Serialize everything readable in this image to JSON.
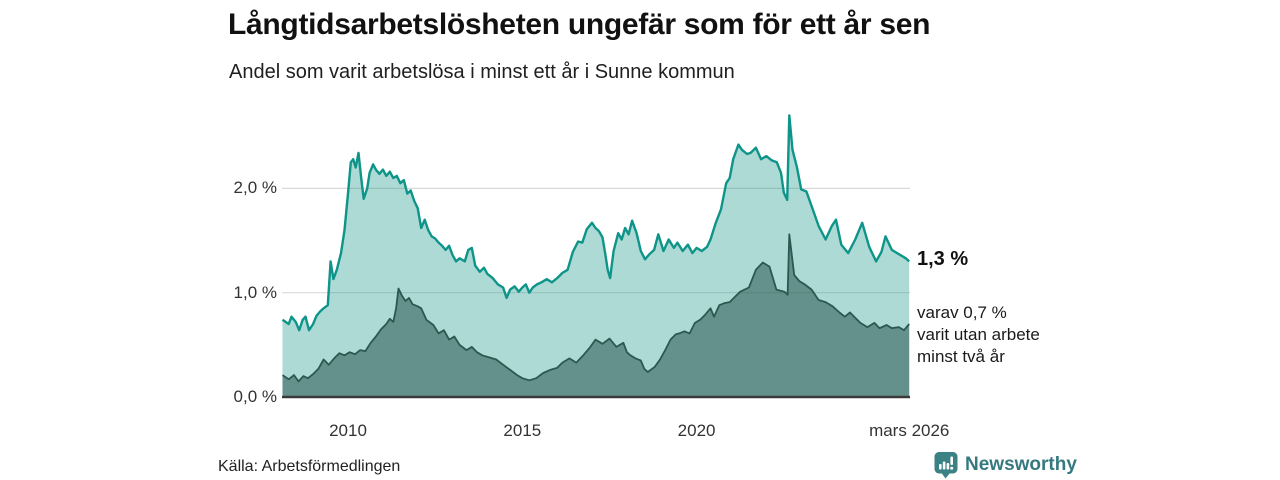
{
  "header": {
    "title": "Långtidsarbetslösheten ungefär som för ett år sen",
    "subtitle": "Andel som varit arbetslösa i minst ett år i Sunne kommun"
  },
  "annotations": {
    "latest_value": "1,3 %",
    "sub_line1": "varav 0,7 %",
    "sub_line2": "varit utan arbete",
    "sub_line3": "minst två år"
  },
  "footer": {
    "source": "Källa: Arbetsförmedlingen",
    "logo_text": "Newsworthy"
  },
  "colors": {
    "accent_teal_line": "#0e9488",
    "light_area_fill": "#a9d6cf",
    "dark_series_line": "#2b5851",
    "dark_area_fill": "#6fa098",
    "grid_line": "#d9d9d9",
    "axis_line": "#3a3a3a",
    "logo_teal": "#3b8285"
  },
  "chart_data": {
    "type": "area",
    "title": "Andel som varit arbetslösa i minst ett år i Sunne kommun",
    "xlabel": "",
    "ylabel": "",
    "grid": "horizontal",
    "xlim": [
      2008.12,
      2026.1
    ],
    "ylim": [
      0,
      2.75
    ],
    "x_ticks": [
      {
        "label": "2010",
        "year": 2010
      },
      {
        "label": "2015",
        "year": 2015
      },
      {
        "label": "2020",
        "year": 2020
      },
      {
        "label": "mars 2026",
        "year": 2026.1
      }
    ],
    "y_ticks": [
      {
        "label": "0,0 %",
        "value": 0
      },
      {
        "label": "1,0 %",
        "value": 1
      },
      {
        "label": "2,0 %",
        "value": 2
      }
    ],
    "series": [
      {
        "name": "Andel arbetslösa minst ett år",
        "latest_label": "1,3 %",
        "line_color": "#0e9488",
        "fill_color": "rgba(20,148,136,0.35)",
        "points": [
          [
            2008.12,
            0.74
          ],
          [
            2008.3,
            0.7
          ],
          [
            2008.38,
            0.77
          ],
          [
            2008.5,
            0.72
          ],
          [
            2008.6,
            0.64
          ],
          [
            2008.7,
            0.74
          ],
          [
            2008.78,
            0.77
          ],
          [
            2008.88,
            0.64
          ],
          [
            2009.0,
            0.7
          ],
          [
            2009.1,
            0.78
          ],
          [
            2009.2,
            0.82
          ],
          [
            2009.3,
            0.85
          ],
          [
            2009.42,
            0.88
          ],
          [
            2009.5,
            1.3
          ],
          [
            2009.58,
            1.13
          ],
          [
            2009.68,
            1.22
          ],
          [
            2009.8,
            1.38
          ],
          [
            2009.9,
            1.6
          ],
          [
            2010.0,
            1.95
          ],
          [
            2010.08,
            2.25
          ],
          [
            2010.15,
            2.28
          ],
          [
            2010.22,
            2.2
          ],
          [
            2010.3,
            2.34
          ],
          [
            2010.38,
            2.1
          ],
          [
            2010.45,
            1.9
          ],
          [
            2010.55,
            2.0
          ],
          [
            2010.62,
            2.15
          ],
          [
            2010.72,
            2.23
          ],
          [
            2010.8,
            2.18
          ],
          [
            2010.9,
            2.14
          ],
          [
            2011.0,
            2.18
          ],
          [
            2011.1,
            2.12
          ],
          [
            2011.2,
            2.16
          ],
          [
            2011.3,
            2.1
          ],
          [
            2011.4,
            2.12
          ],
          [
            2011.5,
            2.05
          ],
          [
            2011.6,
            2.08
          ],
          [
            2011.7,
            1.95
          ],
          [
            2011.8,
            1.98
          ],
          [
            2011.9,
            1.88
          ],
          [
            2012.0,
            1.81
          ],
          [
            2012.1,
            1.62
          ],
          [
            2012.2,
            1.7
          ],
          [
            2012.3,
            1.6
          ],
          [
            2012.4,
            1.54
          ],
          [
            2012.5,
            1.52
          ],
          [
            2012.6,
            1.48
          ],
          [
            2012.7,
            1.45
          ],
          [
            2012.8,
            1.41
          ],
          [
            2012.9,
            1.45
          ],
          [
            2013.0,
            1.36
          ],
          [
            2013.1,
            1.3
          ],
          [
            2013.2,
            1.33
          ],
          [
            2013.35,
            1.3
          ],
          [
            2013.45,
            1.41
          ],
          [
            2013.55,
            1.43
          ],
          [
            2013.65,
            1.26
          ],
          [
            2013.78,
            1.2
          ],
          [
            2013.9,
            1.24
          ],
          [
            2014.0,
            1.18
          ],
          [
            2014.15,
            1.14
          ],
          [
            2014.3,
            1.08
          ],
          [
            2014.45,
            1.05
          ],
          [
            2014.55,
            0.95
          ],
          [
            2014.65,
            1.03
          ],
          [
            2014.78,
            1.06
          ],
          [
            2014.9,
            1.01
          ],
          [
            2015.0,
            1.05
          ],
          [
            2015.1,
            1.08
          ],
          [
            2015.2,
            1.0
          ],
          [
            2015.3,
            1.05
          ],
          [
            2015.42,
            1.08
          ],
          [
            2015.55,
            1.1
          ],
          [
            2015.7,
            1.13
          ],
          [
            2015.85,
            1.1
          ],
          [
            2016.0,
            1.14
          ],
          [
            2016.15,
            1.19
          ],
          [
            2016.3,
            1.22
          ],
          [
            2016.45,
            1.39
          ],
          [
            2016.6,
            1.49
          ],
          [
            2016.72,
            1.48
          ],
          [
            2016.85,
            1.61
          ],
          [
            2017.0,
            1.67
          ],
          [
            2017.1,
            1.62
          ],
          [
            2017.2,
            1.59
          ],
          [
            2017.3,
            1.53
          ],
          [
            2017.38,
            1.37
          ],
          [
            2017.45,
            1.22
          ],
          [
            2017.52,
            1.14
          ],
          [
            2017.62,
            1.4
          ],
          [
            2017.75,
            1.57
          ],
          [
            2017.85,
            1.51
          ],
          [
            2017.95,
            1.62
          ],
          [
            2018.05,
            1.56
          ],
          [
            2018.15,
            1.69
          ],
          [
            2018.28,
            1.57
          ],
          [
            2018.4,
            1.4
          ],
          [
            2018.52,
            1.32
          ],
          [
            2018.65,
            1.37
          ],
          [
            2018.78,
            1.41
          ],
          [
            2018.9,
            1.56
          ],
          [
            2019.05,
            1.4
          ],
          [
            2019.2,
            1.51
          ],
          [
            2019.35,
            1.43
          ],
          [
            2019.45,
            1.48
          ],
          [
            2019.6,
            1.4
          ],
          [
            2019.75,
            1.46
          ],
          [
            2019.88,
            1.38
          ],
          [
            2020.0,
            1.43
          ],
          [
            2020.15,
            1.4
          ],
          [
            2020.3,
            1.44
          ],
          [
            2020.4,
            1.51
          ],
          [
            2020.55,
            1.67
          ],
          [
            2020.7,
            1.8
          ],
          [
            2020.85,
            2.05
          ],
          [
            2020.95,
            2.1
          ],
          [
            2021.05,
            2.28
          ],
          [
            2021.2,
            2.42
          ],
          [
            2021.3,
            2.37
          ],
          [
            2021.45,
            2.33
          ],
          [
            2021.55,
            2.34
          ],
          [
            2021.7,
            2.39
          ],
          [
            2021.85,
            2.28
          ],
          [
            2022.0,
            2.31
          ],
          [
            2022.15,
            2.27
          ],
          [
            2022.3,
            2.25
          ],
          [
            2022.42,
            2.15
          ],
          [
            2022.5,
            1.96
          ],
          [
            2022.6,
            1.89
          ],
          [
            2022.66,
            2.7
          ],
          [
            2022.75,
            2.37
          ],
          [
            2022.88,
            2.2
          ],
          [
            2023.0,
            1.99
          ],
          [
            2023.15,
            1.97
          ],
          [
            2023.3,
            1.83
          ],
          [
            2023.5,
            1.64
          ],
          [
            2023.7,
            1.51
          ],
          [
            2023.88,
            1.64
          ],
          [
            2024.0,
            1.7
          ],
          [
            2024.15,
            1.46
          ],
          [
            2024.35,
            1.38
          ],
          [
            2024.55,
            1.51
          ],
          [
            2024.75,
            1.67
          ],
          [
            2024.95,
            1.44
          ],
          [
            2025.15,
            1.3
          ],
          [
            2025.3,
            1.39
          ],
          [
            2025.42,
            1.54
          ],
          [
            2025.6,
            1.41
          ],
          [
            2025.8,
            1.37
          ],
          [
            2026.0,
            1.33
          ],
          [
            2026.1,
            1.3
          ]
        ]
      },
      {
        "name": "Andel arbetslösa minst två år",
        "latest_label": "0,7 %",
        "line_color": "#2b5851",
        "fill_color": "rgba(40,85,79,0.55)",
        "points": [
          [
            2008.12,
            0.21
          ],
          [
            2008.3,
            0.17
          ],
          [
            2008.45,
            0.21
          ],
          [
            2008.58,
            0.15
          ],
          [
            2008.72,
            0.2
          ],
          [
            2008.85,
            0.18
          ],
          [
            2009.0,
            0.22
          ],
          [
            2009.15,
            0.27
          ],
          [
            2009.3,
            0.36
          ],
          [
            2009.45,
            0.31
          ],
          [
            2009.6,
            0.37
          ],
          [
            2009.75,
            0.42
          ],
          [
            2009.9,
            0.4
          ],
          [
            2010.05,
            0.43
          ],
          [
            2010.2,
            0.41
          ],
          [
            2010.35,
            0.45
          ],
          [
            2010.5,
            0.44
          ],
          [
            2010.65,
            0.52
          ],
          [
            2010.8,
            0.58
          ],
          [
            2010.95,
            0.65
          ],
          [
            2011.1,
            0.7
          ],
          [
            2011.2,
            0.75
          ],
          [
            2011.3,
            0.72
          ],
          [
            2011.38,
            0.85
          ],
          [
            2011.45,
            1.04
          ],
          [
            2011.55,
            0.97
          ],
          [
            2011.65,
            0.92
          ],
          [
            2011.75,
            0.95
          ],
          [
            2011.85,
            0.89
          ],
          [
            2012.0,
            0.87
          ],
          [
            2012.1,
            0.85
          ],
          [
            2012.25,
            0.74
          ],
          [
            2012.45,
            0.69
          ],
          [
            2012.6,
            0.61
          ],
          [
            2012.75,
            0.64
          ],
          [
            2012.9,
            0.55
          ],
          [
            2013.05,
            0.58
          ],
          [
            2013.2,
            0.5
          ],
          [
            2013.4,
            0.45
          ],
          [
            2013.55,
            0.48
          ],
          [
            2013.7,
            0.43
          ],
          [
            2013.85,
            0.4
          ],
          [
            2014.05,
            0.38
          ],
          [
            2014.25,
            0.36
          ],
          [
            2014.45,
            0.31
          ],
          [
            2014.65,
            0.26
          ],
          [
            2014.85,
            0.21
          ],
          [
            2015.0,
            0.18
          ],
          [
            2015.2,
            0.16
          ],
          [
            2015.4,
            0.18
          ],
          [
            2015.6,
            0.23
          ],
          [
            2015.8,
            0.26
          ],
          [
            2016.0,
            0.28
          ],
          [
            2016.15,
            0.33
          ],
          [
            2016.35,
            0.37
          ],
          [
            2016.55,
            0.33
          ],
          [
            2016.75,
            0.4
          ],
          [
            2016.95,
            0.48
          ],
          [
            2017.1,
            0.55
          ],
          [
            2017.3,
            0.51
          ],
          [
            2017.5,
            0.56
          ],
          [
            2017.7,
            0.48
          ],
          [
            2017.9,
            0.52
          ],
          [
            2018.0,
            0.43
          ],
          [
            2018.1,
            0.4
          ],
          [
            2018.25,
            0.37
          ],
          [
            2018.4,
            0.35
          ],
          [
            2018.5,
            0.27
          ],
          [
            2018.6,
            0.24
          ],
          [
            2018.8,
            0.29
          ],
          [
            2018.95,
            0.36
          ],
          [
            2019.1,
            0.45
          ],
          [
            2019.25,
            0.55
          ],
          [
            2019.4,
            0.6
          ],
          [
            2019.5,
            0.61
          ],
          [
            2019.65,
            0.63
          ],
          [
            2019.8,
            0.61
          ],
          [
            2019.95,
            0.71
          ],
          [
            2020.1,
            0.74
          ],
          [
            2020.25,
            0.79
          ],
          [
            2020.4,
            0.85
          ],
          [
            2020.5,
            0.77
          ],
          [
            2020.65,
            0.88
          ],
          [
            2020.8,
            0.9
          ],
          [
            2020.95,
            0.91
          ],
          [
            2021.1,
            0.96
          ],
          [
            2021.25,
            1.01
          ],
          [
            2021.5,
            1.05
          ],
          [
            2021.7,
            1.22
          ],
          [
            2021.9,
            1.29
          ],
          [
            2022.09,
            1.25
          ],
          [
            2022.29,
            1.03
          ],
          [
            2022.52,
            1.01
          ],
          [
            2022.61,
            0.98
          ],
          [
            2022.66,
            1.56
          ],
          [
            2022.8,
            1.17
          ],
          [
            2022.95,
            1.11
          ],
          [
            2023.1,
            1.08
          ],
          [
            2023.3,
            1.03
          ],
          [
            2023.5,
            0.93
          ],
          [
            2023.7,
            0.91
          ],
          [
            2023.9,
            0.87
          ],
          [
            2024.1,
            0.81
          ],
          [
            2024.25,
            0.77
          ],
          [
            2024.4,
            0.81
          ],
          [
            2024.55,
            0.76
          ],
          [
            2024.7,
            0.71
          ],
          [
            2024.9,
            0.67
          ],
          [
            2025.1,
            0.71
          ],
          [
            2025.25,
            0.66
          ],
          [
            2025.45,
            0.69
          ],
          [
            2025.6,
            0.66
          ],
          [
            2025.8,
            0.67
          ],
          [
            2025.95,
            0.64
          ],
          [
            2026.1,
            0.7
          ]
        ]
      }
    ]
  }
}
